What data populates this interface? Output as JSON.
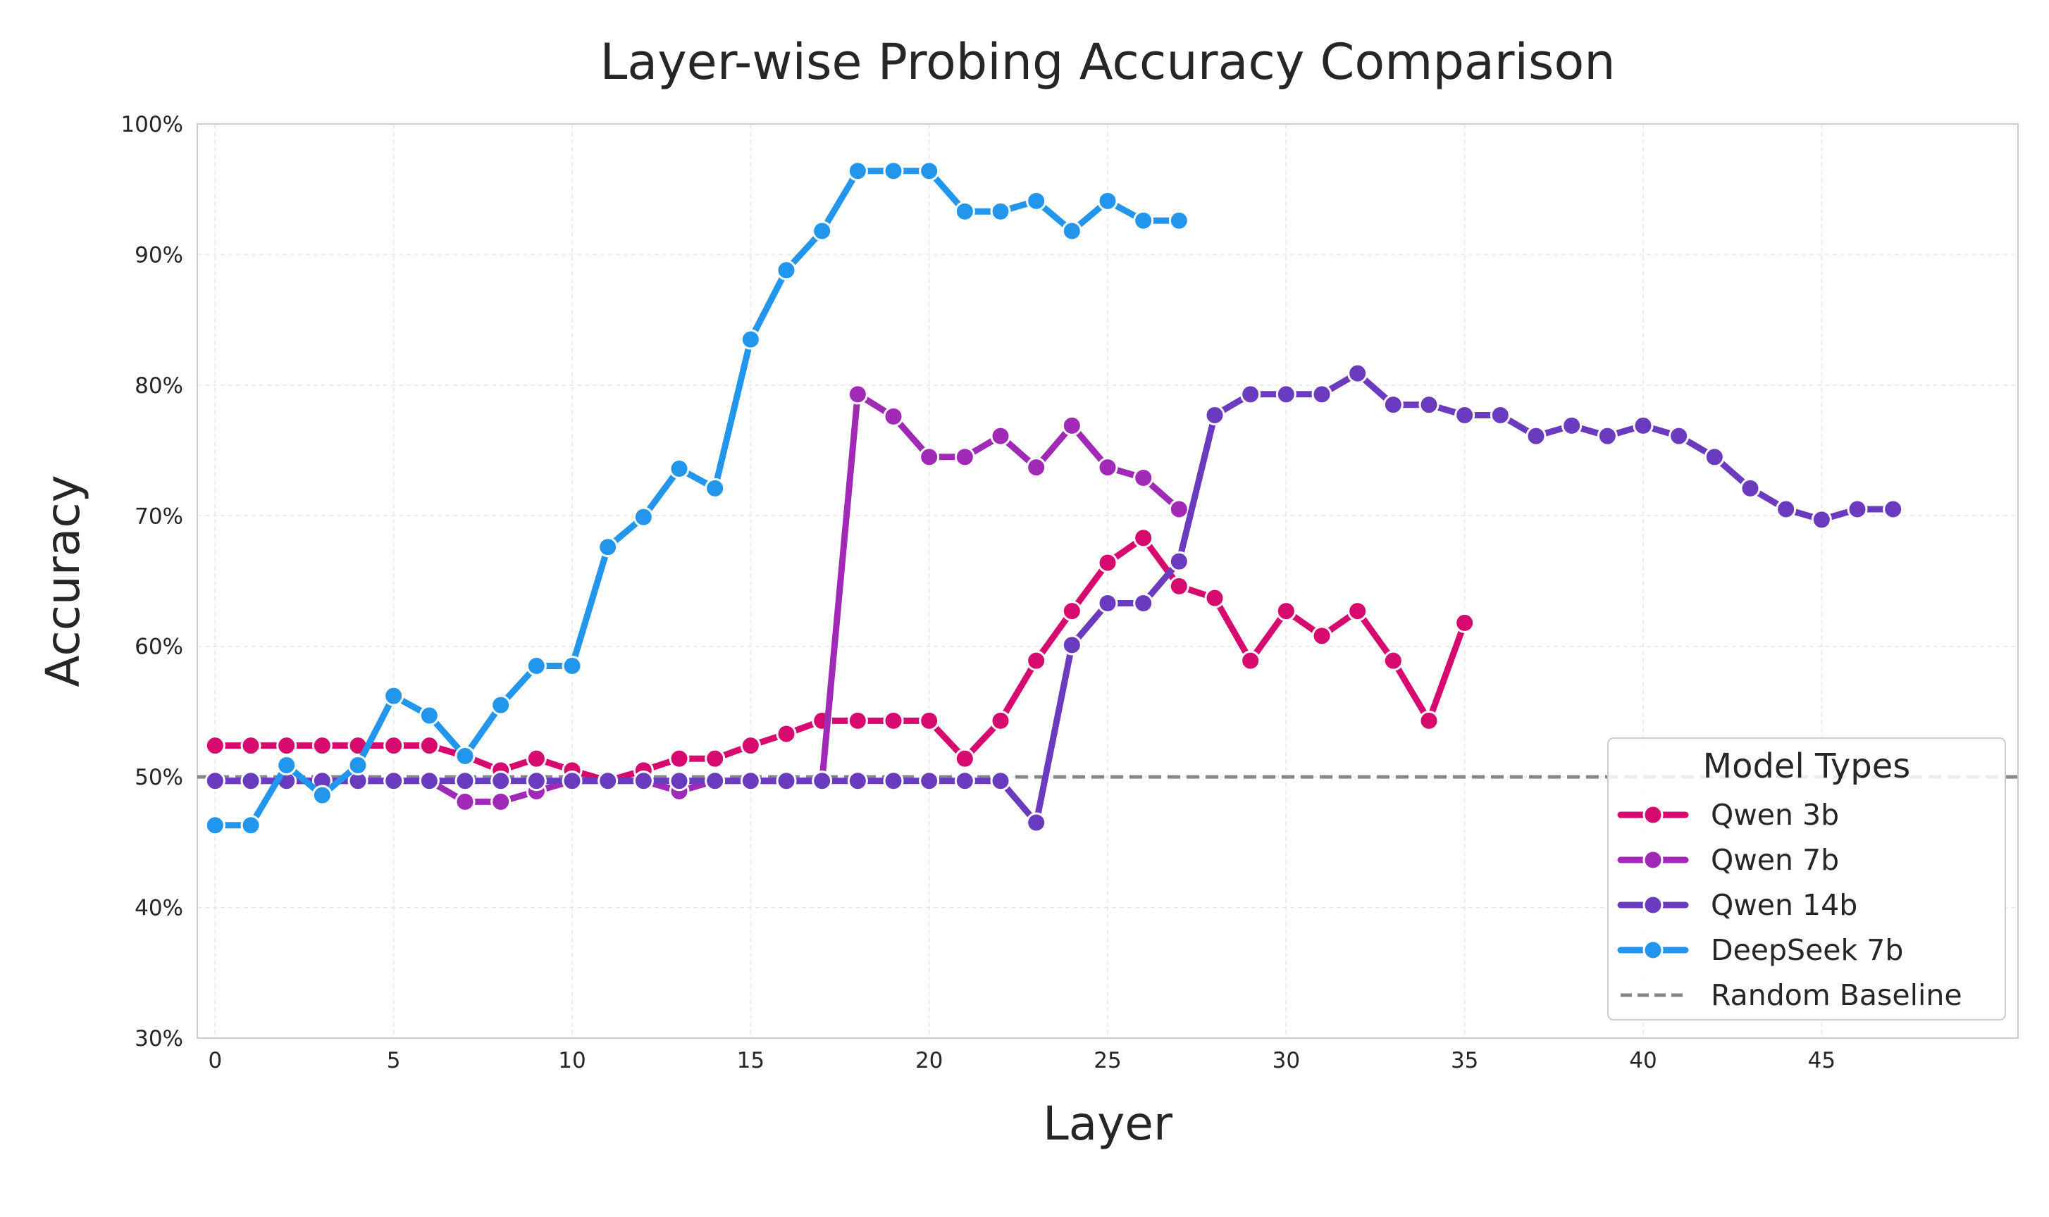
{
  "chart_data": {
    "type": "line",
    "title": "Layer-wise Probing Accuracy Comparison",
    "xlabel": "Layer",
    "ylabel": "Accuracy",
    "xlim": [
      -0.5,
      50.5
    ],
    "ylim": [
      30,
      100
    ],
    "x_ticks": [
      0,
      5,
      10,
      15,
      20,
      25,
      30,
      35,
      40,
      45
    ],
    "y_ticks": [
      30,
      40,
      50,
      60,
      70,
      80,
      90,
      100
    ],
    "y_tick_labels": [
      "30%",
      "40%",
      "50%",
      "60%",
      "70%",
      "80%",
      "90%",
      "100%"
    ],
    "grid": true,
    "legend": {
      "title": "Model Types",
      "position": "lower-right"
    },
    "series": [
      {
        "name": "Qwen 3b",
        "color": "#d6096f",
        "values": [
          52.4,
          52.4,
          52.4,
          52.4,
          52.4,
          52.4,
          52.4,
          51.6,
          50.5,
          51.4,
          50.5,
          49.7,
          50.5,
          51.4,
          51.4,
          52.4,
          53.3,
          54.3,
          54.3,
          54.3,
          54.3,
          51.4,
          54.3,
          58.9,
          62.7,
          66.4,
          68.3,
          64.6,
          63.7,
          58.9,
          62.7,
          60.8,
          62.7,
          58.9,
          54.3,
          61.8
        ]
      },
      {
        "name": "Qwen 7b",
        "color": "#a02ab6",
        "values": [
          49.7,
          49.7,
          49.7,
          49.7,
          49.7,
          49.7,
          49.7,
          48.1,
          48.1,
          48.9,
          49.7,
          49.7,
          49.7,
          48.9,
          49.7,
          49.7,
          49.7,
          49.7,
          79.3,
          77.6,
          74.5,
          74.5,
          76.1,
          73.7,
          76.9,
          73.7,
          72.9,
          70.5
        ]
      },
      {
        "name": "Qwen 14b",
        "color": "#6a3bbf",
        "values": [
          49.7,
          49.7,
          49.7,
          49.7,
          49.7,
          49.7,
          49.7,
          49.7,
          49.7,
          49.7,
          49.7,
          49.7,
          49.7,
          49.7,
          49.7,
          49.7,
          49.7,
          49.7,
          49.7,
          49.7,
          49.7,
          49.7,
          49.7,
          46.5,
          60.1,
          63.3,
          63.3,
          66.5,
          77.7,
          79.3,
          79.3,
          79.3,
          80.9,
          78.5,
          78.5,
          77.7,
          77.7,
          76.1,
          76.9,
          76.1,
          76.9,
          76.1,
          74.5,
          72.1,
          70.5,
          69.7,
          70.5,
          70.5
        ]
      },
      {
        "name": "DeepSeek 7b",
        "color": "#2295ec",
        "values": [
          46.3,
          46.3,
          50.9,
          48.6,
          50.9,
          56.2,
          54.7,
          51.6,
          55.5,
          58.5,
          58.5,
          67.6,
          69.9,
          73.6,
          72.1,
          83.5,
          88.8,
          91.8,
          96.4,
          96.4,
          96.4,
          93.3,
          93.3,
          94.1,
          91.8,
          94.1,
          92.6,
          92.6
        ]
      }
    ],
    "baseline": {
      "name": "Random Baseline",
      "value": 50,
      "color": "#888888"
    }
  }
}
